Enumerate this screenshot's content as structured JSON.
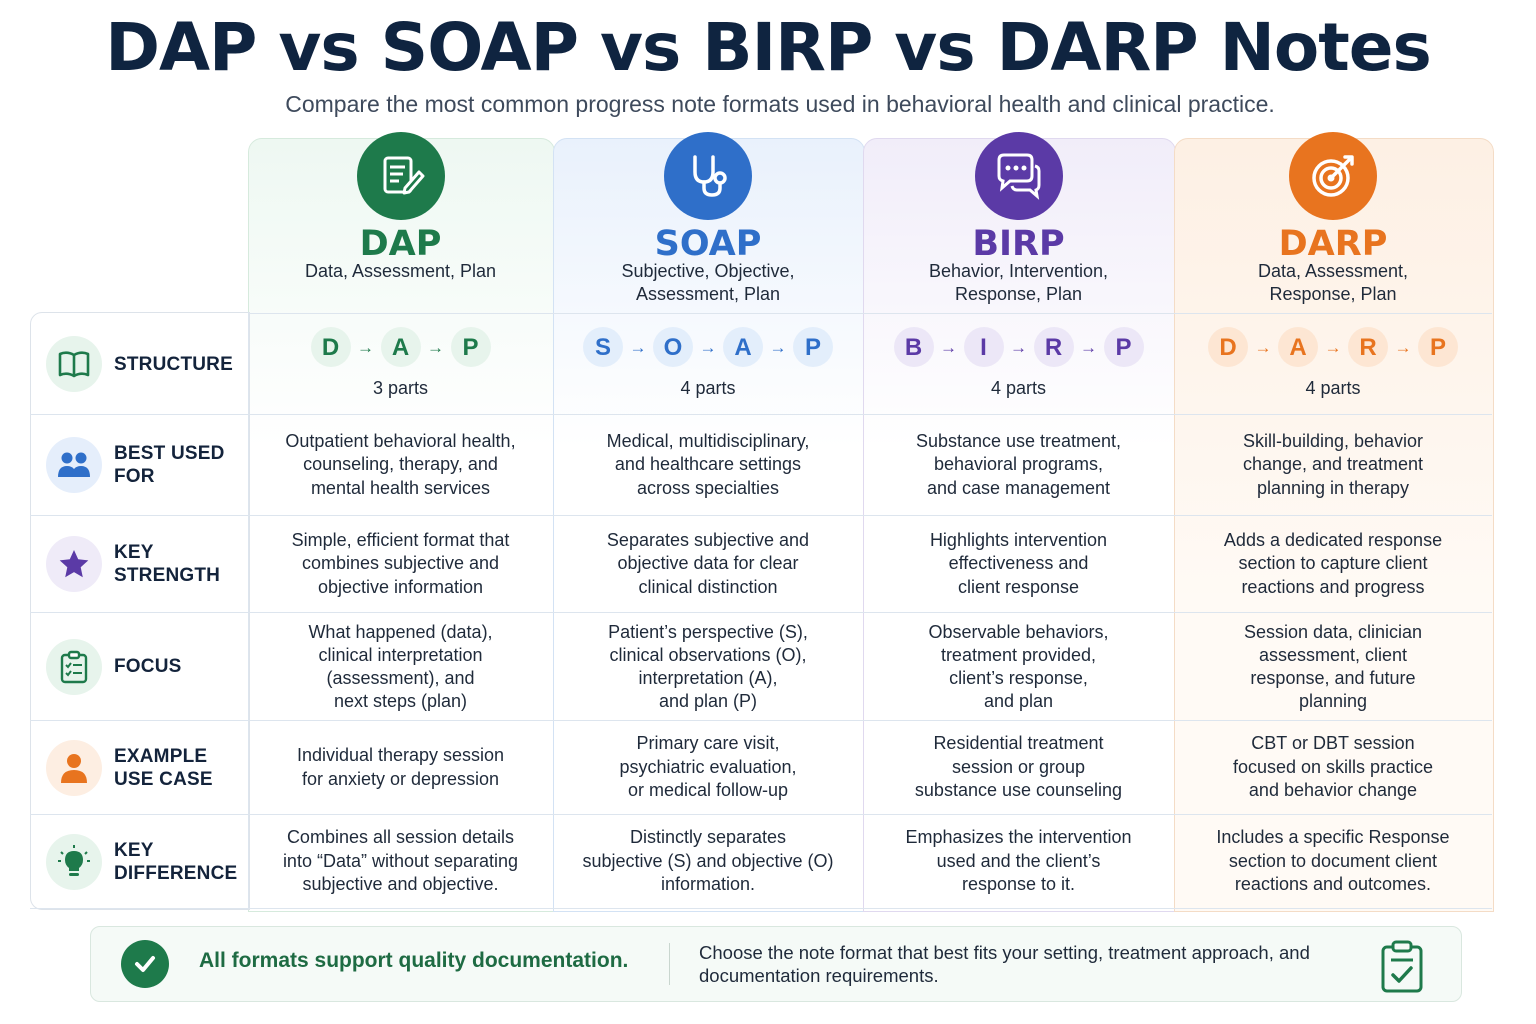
{
  "title": "DAP vs SOAP vs BIRP vs DARP Notes",
  "subtitle": "Compare the most common progress note formats used in behavioral health and clinical practice.",
  "columns": [
    {
      "key": "dap",
      "name": "DAP",
      "full": [
        "Data, Assessment, Plan"
      ],
      "color": "#1e7a4b",
      "icon": "document-pen-icon",
      "letters": [
        "D",
        "A",
        "P"
      ],
      "parts": "3 parts"
    },
    {
      "key": "soap",
      "name": "SOAP",
      "full": [
        "Subjective, Objective,",
        "Assessment, Plan"
      ],
      "color": "#2f6fc9",
      "icon": "stethoscope-icon",
      "letters": [
        "S",
        "O",
        "A",
        "P"
      ],
      "parts": "4 parts"
    },
    {
      "key": "birp",
      "name": "BIRP",
      "full": [
        "Behavior, Intervention,",
        "Response, Plan"
      ],
      "color": "#5b3aa6",
      "icon": "chat-bubbles-icon",
      "letters": [
        "B",
        "I",
        "R",
        "P"
      ],
      "parts": "4 parts"
    },
    {
      "key": "darp",
      "name": "DARP",
      "full": [
        "Data, Assessment,",
        "Response, Plan"
      ],
      "color": "#e8741f",
      "icon": "target-icon",
      "letters": [
        "D",
        "A",
        "R",
        "P"
      ],
      "parts": "4 parts"
    }
  ],
  "rows": [
    {
      "label": [
        "STRUCTURE"
      ],
      "icon": "book-icon"
    },
    {
      "label": [
        "BEST USED",
        "FOR"
      ],
      "icon": "people-icon",
      "cells": [
        [
          "Outpatient behavioral health,",
          "counseling, therapy, and",
          "mental health services"
        ],
        [
          "Medical, multidisciplinary,",
          "and healthcare settings",
          "across specialties"
        ],
        [
          "Substance use treatment,",
          "behavioral programs,",
          "and case management"
        ],
        [
          "Skill-building, behavior",
          "change, and treatment",
          "planning in therapy"
        ]
      ]
    },
    {
      "label": [
        "KEY",
        "STRENGTH"
      ],
      "icon": "star-icon",
      "cells": [
        [
          "Simple, efficient format that",
          "combines subjective and",
          "objective information"
        ],
        [
          "Separates subjective and",
          "objective data for clear",
          "clinical distinction"
        ],
        [
          "Highlights intervention",
          "effectiveness and",
          "client response"
        ],
        [
          "Adds a dedicated response",
          "section to capture client",
          "reactions and progress"
        ]
      ]
    },
    {
      "label": [
        "FOCUS"
      ],
      "icon": "clipboard-list-icon",
      "cells": [
        [
          "What happened (data),",
          "clinical interpretation",
          "(assessment), and",
          "next steps (plan)"
        ],
        [
          "Patient’s perspective (S),",
          "clinical observations (O),",
          "interpretation (A),",
          "and plan (P)"
        ],
        [
          "Observable behaviors,",
          "treatment provided,",
          "client’s response,",
          "and plan"
        ],
        [
          "Session data, clinician",
          "assessment, client",
          "response, and future",
          "planning"
        ]
      ]
    },
    {
      "label": [
        "EXAMPLE",
        "USE CASE"
      ],
      "icon": "person-icon",
      "cells": [
        [
          "Individual therapy session",
          "for anxiety or depression"
        ],
        [
          "Primary care visit,",
          "psychiatric evaluation,",
          "or medical follow-up"
        ],
        [
          "Residential treatment",
          "session or group",
          "substance use counseling"
        ],
        [
          "CBT or DBT session",
          "focused on skills practice",
          "and behavior change"
        ]
      ]
    },
    {
      "label": [
        "KEY",
        "DIFFERENCE"
      ],
      "icon": "lightbulb-icon",
      "cells": [
        [
          "Combines all session details",
          "into “Data” without separating",
          "subjective and objective."
        ],
        [
          "Distinctly separates",
          "subjective (S) and objective (O)",
          "information."
        ],
        [
          "Emphasizes the intervention",
          "used and the client’s",
          "response to it."
        ],
        [
          "Includes a specific Response",
          "section to document client",
          "reactions and outcomes."
        ]
      ]
    }
  ],
  "footer": {
    "strong": "All formats support quality documentation.",
    "text": "Choose the note format that best fits your setting, treatment approach, and documentation requirements.",
    "icon": "clipboard-check-icon"
  },
  "colors": {
    "dap": "#1e7a4b",
    "soap": "#2f6fc9",
    "birp": "#5b3aa6",
    "darp": "#e8741f",
    "dap_bg": "#f3faf6",
    "soap_bg": "#eef4fc",
    "birp_bg": "#f4f1fa",
    "darp_bg": "#fdf3ea"
  }
}
